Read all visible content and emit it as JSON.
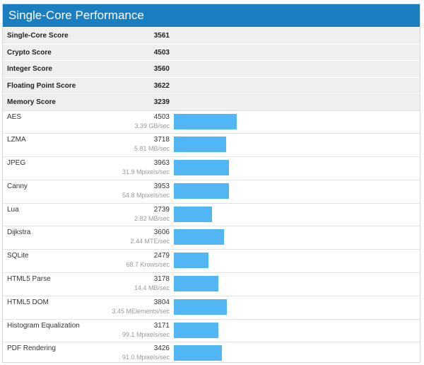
{
  "title": "Single-Core Performance",
  "summary": [
    {
      "label": "Single-Core Score",
      "value": "3561"
    },
    {
      "label": "Crypto Score",
      "value": "4503"
    },
    {
      "label": "Integer Score",
      "value": "3560"
    },
    {
      "label": "Floating Point Score",
      "value": "3622"
    },
    {
      "label": "Memory Score",
      "value": "3239"
    }
  ],
  "benchmarks": [
    {
      "name": "AES",
      "score": 4503,
      "rate": "3.39 GB/sec"
    },
    {
      "name": "LZMA",
      "score": 3718,
      "rate": "5.81 MB/sec"
    },
    {
      "name": "JPEG",
      "score": 3963,
      "rate": "31.9 Mpixels/sec"
    },
    {
      "name": "Canny",
      "score": 3953,
      "rate": "54.8 Mpixels/sec"
    },
    {
      "name": "Lua",
      "score": 2739,
      "rate": "2.82 MB/sec"
    },
    {
      "name": "Dijkstra",
      "score": 3606,
      "rate": "2.44 MTE/sec"
    },
    {
      "name": "SQLite",
      "score": 2479,
      "rate": "68.7 Krows/sec"
    },
    {
      "name": "HTML5 Parse",
      "score": 3178,
      "rate": "14.4 MB/sec"
    },
    {
      "name": "HTML5 DOM",
      "score": 3804,
      "rate": "3.45 MElements/sec"
    },
    {
      "name": "Histogram Equalization",
      "score": 3171,
      "rate": "99.1 Mpixels/sec"
    },
    {
      "name": "PDF Rendering",
      "score": 3426,
      "rate": "91.0 Mpixels/sec"
    }
  ],
  "bar_color": "#52b5f4",
  "header_color": "#1a7fc1"
}
